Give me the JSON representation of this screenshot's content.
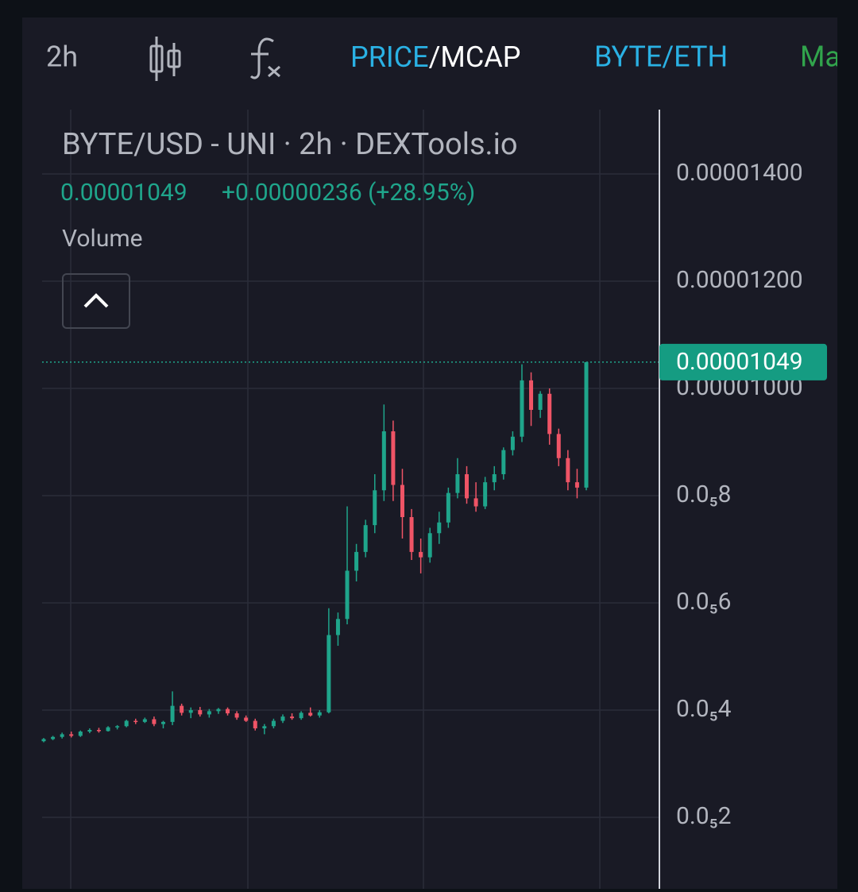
{
  "toolbar": {
    "interval": "2h",
    "tab_price": "PRICE",
    "tab_mcap": "/MCAP",
    "pair": "BYTE/ETH",
    "more": "Ma"
  },
  "legend": {
    "title": "BYTE/USD - UNI · 2h · DEXTools.io",
    "last_price": "0.00001049",
    "change": "+0.00000236 (+28.95%)",
    "volume": "Volume"
  },
  "chart_data": {
    "type": "candlestick",
    "up_color": "#1fa58b",
    "down_color": "#ef5466",
    "grid": true,
    "ylim": [
      6.67e-07,
      1.52e-05
    ],
    "yticks": [
      {
        "value": 1.4e-05,
        "label": "0.00001400"
      },
      {
        "value": 1.2e-05,
        "label": "0.00001200"
      },
      {
        "value": 1e-05,
        "label": "0.00001000"
      },
      {
        "value": 8e-06,
        "label": "0.0₅8"
      },
      {
        "value": 6e-06,
        "label": "0.0₅6"
      },
      {
        "value": 4e-06,
        "label": "0.0₅4"
      },
      {
        "value": 2e-06,
        "label": "0.0₅2"
      }
    ],
    "open": [
      3.42e-06,
      3.46e-06,
      3.5e-06,
      3.55e-06,
      3.52e-06,
      3.6e-06,
      3.63e-06,
      3.61e-06,
      3.68e-06,
      3.7e-06,
      3.8e-06,
      3.78e-06,
      3.83e-06,
      3.74e-06,
      3.78e-06,
      4.08e-06,
      3.95e-06,
      4e-06,
      3.92e-06,
      3.98e-06,
      4.02e-06,
      3.94e-06,
      3.86e-06,
      3.8e-06,
      3.66e-06,
      3.7e-06,
      3.8e-06,
      3.88e-06,
      3.85e-06,
      3.95e-06,
      3.9e-06,
      3.96e-06,
      5.4e-06,
      5.7e-06,
      6.6e-06,
      6.95e-06,
      7.45e-06,
      8.1e-06,
      9.2e-06,
      8.2e-06,
      7.6e-06,
      6.95e-06,
      6.85e-06,
      7.3e-06,
      7.5e-06,
      8.05e-06,
      8.4e-06,
      7.95e-06,
      7.8e-06,
      8.25e-06,
      8.4e-06,
      8.85e-06,
      9.1e-06,
      1.015e-05,
      9.6e-06,
      9.9e-06,
      9.15e-06,
      8.7e-06,
      8.25e-06,
      8.15e-06
    ],
    "high": [
      3.48e-06,
      3.52e-06,
      3.58e-06,
      3.6e-06,
      3.62e-06,
      3.66e-06,
      3.67e-06,
      3.7e-06,
      3.72e-06,
      3.82e-06,
      3.84e-06,
      3.86e-06,
      3.88e-06,
      3.8e-06,
      4.35e-06,
      4.12e-06,
      4.05e-06,
      4.06e-06,
      4.02e-06,
      4.04e-06,
      4.05e-06,
      3.98e-06,
      3.9e-06,
      3.84e-06,
      3.74e-06,
      3.84e-06,
      3.92e-06,
      3.94e-06,
      3.98e-06,
      4.05e-06,
      4e-06,
      5.9e-06,
      5.82e-06,
      7.8e-06,
      7.1e-06,
      7.55e-06,
      8.4e-06,
      9.7e-06,
      9.4e-06,
      8.5e-06,
      7.75e-06,
      7.2e-06,
      7.4e-06,
      7.7e-06,
      8.15e-06,
      8.7e-06,
      8.55e-06,
      8.25e-06,
      8.35e-06,
      8.55e-06,
      8.9e-06,
      9.2e-06,
      1.045e-05,
      1.03e-05,
      9.95e-06,
      1e-05,
      9.25e-06,
      8.85e-06,
      8.5e-06,
      1.049e-05
    ],
    "low": [
      3.4e-06,
      3.44e-06,
      3.47e-06,
      3.49e-06,
      3.5e-06,
      3.57e-06,
      3.58e-06,
      3.6e-06,
      3.64e-06,
      3.68e-06,
      3.74e-06,
      3.76e-06,
      3.7e-06,
      3.66e-06,
      3.72e-06,
      3.9e-06,
      3.85e-06,
      3.88e-06,
      3.86e-06,
      3.93e-06,
      3.9e-06,
      3.82e-06,
      3.78e-06,
      3.62e-06,
      3.55e-06,
      3.66e-06,
      3.76e-06,
      3.82e-06,
      3.82e-06,
      3.88e-06,
      3.86e-06,
      3.94e-06,
      5.2e-06,
      5.6e-06,
      6.4e-06,
      6.85e-06,
      7.3e-06,
      7.9e-06,
      7.9e-06,
      7.2e-06,
      6.8e-06,
      6.55e-06,
      6.75e-06,
      7.1e-06,
      7.4e-06,
      7.95e-06,
      7.85e-06,
      7.7e-06,
      7.75e-06,
      8.1e-06,
      8.3e-06,
      8.75e-06,
      9e-06,
      9.3e-06,
      9.45e-06,
      8.95e-06,
      8.55e-06,
      8.1e-06,
      7.95e-06,
      8.1e-06
    ],
    "close": [
      3.46e-06,
      3.5e-06,
      3.55e-06,
      3.52e-06,
      3.6e-06,
      3.63e-06,
      3.61e-06,
      3.68e-06,
      3.7e-06,
      3.8e-06,
      3.78e-06,
      3.83e-06,
      3.74e-06,
      3.78e-06,
      4.08e-06,
      3.95e-06,
      4e-06,
      3.92e-06,
      3.98e-06,
      4.02e-06,
      3.94e-06,
      3.86e-06,
      3.8e-06,
      3.66e-06,
      3.7e-06,
      3.8e-06,
      3.88e-06,
      3.85e-06,
      3.95e-06,
      3.9e-06,
      3.96e-06,
      5.4e-06,
      5.7e-06,
      6.6e-06,
      6.95e-06,
      7.45e-06,
      8.1e-06,
      9.2e-06,
      8.2e-06,
      7.6e-06,
      6.95e-06,
      6.85e-06,
      7.3e-06,
      7.5e-06,
      8.05e-06,
      8.4e-06,
      7.95e-06,
      7.8e-06,
      8.25e-06,
      8.4e-06,
      8.85e-06,
      9.1e-06,
      1.015e-05,
      9.6e-06,
      9.9e-06,
      9.15e-06,
      8.7e-06,
      8.25e-06,
      8.15e-06,
      1.049e-05
    ]
  }
}
